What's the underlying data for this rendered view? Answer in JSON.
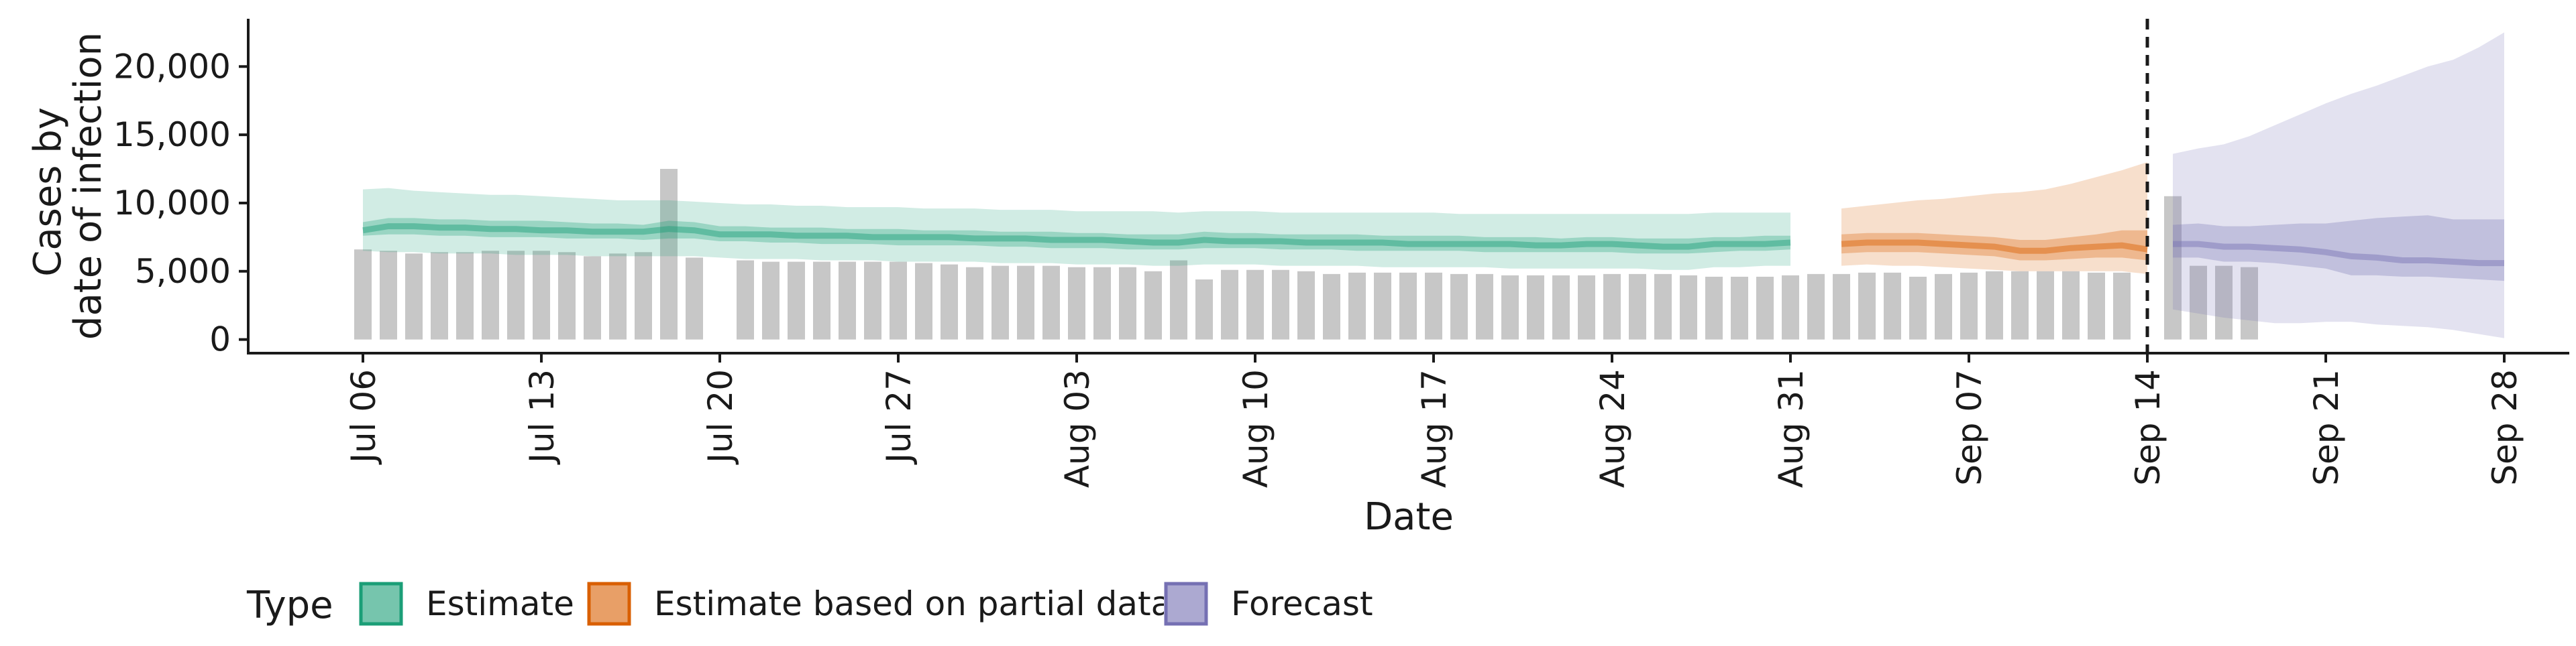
{
  "chart_data": {
    "type": "area",
    "xlabel": "Date",
    "ylabel_lines": [
      "Cases by",
      "date of infection"
    ],
    "ylim": [
      -1000,
      23500
    ],
    "y_ticks": [
      0,
      5000,
      10000,
      15000,
      20000
    ],
    "y_tick_labels": [
      "0",
      "5,000",
      "10,000",
      "15,000",
      "20,000"
    ],
    "x_range": [
      "2020-07-06",
      "2020-09-28"
    ],
    "x_ticks": [
      "2020-07-06",
      "2020-07-13",
      "2020-07-20",
      "2020-07-27",
      "2020-08-03",
      "2020-08-10",
      "2020-08-17",
      "2020-08-24",
      "2020-08-31",
      "2020-09-07",
      "2020-09-14",
      "2020-09-21",
      "2020-09-28"
    ],
    "x_tick_labels": [
      "Jul 06",
      "Jul 13",
      "Jul 20",
      "Jul 27",
      "Aug 03",
      "Aug 10",
      "Aug 17",
      "Aug 24",
      "Aug 31",
      "Sep 07",
      "Sep 14",
      "Sep 21",
      "Sep 28"
    ],
    "forecast_start": "2020-09-14",
    "grid": false,
    "legend_position": "bottom",
    "legend_title": "Type",
    "legend": [
      {
        "label": "Estimate",
        "color": "#1b9e77"
      },
      {
        "label": "Estimate based on partial data",
        "color": "#d95f02"
      },
      {
        "label": "Forecast",
        "color": "#7570b3"
      }
    ],
    "reported_cases": {
      "start": "2020-07-06",
      "values": [
        6600,
        6500,
        6300,
        6400,
        6400,
        6500,
        6500,
        6500,
        6400,
        6100,
        6300,
        6400,
        12500,
        6000,
        null,
        5800,
        5700,
        5700,
        5700,
        5700,
        5700,
        5700,
        5600,
        5500,
        5300,
        5400,
        5400,
        5400,
        5300,
        5300,
        5300,
        5000,
        5800,
        4400,
        5100,
        5100,
        5100,
        5000,
        4800,
        4900,
        4900,
        4900,
        4900,
        4800,
        4800,
        4700,
        4700,
        4700,
        4700,
        4800,
        4800,
        4800,
        4700,
        4600,
        4600,
        4600,
        4700,
        4800,
        4800,
        4900,
        4900,
        4600,
        4800,
        4900,
        5000,
        5000,
        5000,
        5000,
        4900,
        4900,
        null,
        10500,
        5400,
        5400,
        5300
      ]
    },
    "series": [
      {
        "name": "Estimate",
        "color": "#1b9e77",
        "start": "2020-07-06",
        "median": [
          8000,
          8300,
          8300,
          8200,
          8200,
          8100,
          8100,
          8000,
          8000,
          7900,
          7900,
          7900,
          8100,
          8000,
          7700,
          7700,
          7700,
          7600,
          7600,
          7600,
          7500,
          7500,
          7500,
          7500,
          7400,
          7400,
          7400,
          7300,
          7300,
          7300,
          7200,
          7100,
          7100,
          7300,
          7200,
          7200,
          7200,
          7100,
          7100,
          7100,
          7100,
          7000,
          7000,
          7000,
          7000,
          7000,
          6900,
          6900,
          7000,
          7000,
          6900,
          6800,
          6800,
          7000,
          7000,
          7000,
          7100
        ],
        "lower50": [
          7600,
          7700,
          7700,
          7600,
          7600,
          7500,
          7500,
          7500,
          7400,
          7400,
          7400,
          7300,
          7400,
          7400,
          7200,
          7200,
          7100,
          7100,
          7000,
          7000,
          7000,
          6900,
          6900,
          6900,
          6900,
          6800,
          6800,
          6700,
          6700,
          6700,
          6600,
          6600,
          6600,
          6700,
          6700,
          6700,
          6600,
          6600,
          6600,
          6500,
          6500,
          6500,
          6500,
          6500,
          6400,
          6400,
          6400,
          6400,
          6400,
          6400,
          6300,
          6300,
          6300,
          6400,
          6500,
          6500,
          6600
        ],
        "upper50": [
          8600,
          8900,
          8900,
          8800,
          8800,
          8700,
          8700,
          8700,
          8600,
          8500,
          8500,
          8400,
          8700,
          8600,
          8300,
          8300,
          8200,
          8200,
          8200,
          8100,
          8100,
          8100,
          8000,
          8000,
          8000,
          7900,
          7900,
          7900,
          7800,
          7800,
          7700,
          7700,
          7700,
          7900,
          7800,
          7800,
          7700,
          7700,
          7700,
          7700,
          7600,
          7600,
          7600,
          7600,
          7500,
          7500,
          7500,
          7400,
          7500,
          7500,
          7400,
          7400,
          7400,
          7500,
          7500,
          7600,
          7600
        ],
        "lower90": [
          6500,
          6400,
          6400,
          6300,
          6300,
          6300,
          6200,
          6200,
          6200,
          6100,
          6100,
          6100,
          6100,
          6100,
          6000,
          5900,
          5900,
          5900,
          5800,
          5800,
          5800,
          5700,
          5700,
          5700,
          5700,
          5600,
          5600,
          5600,
          5500,
          5500,
          5500,
          5400,
          5400,
          5500,
          5500,
          5500,
          5400,
          5400,
          5400,
          5400,
          5300,
          5300,
          5300,
          5300,
          5300,
          5200,
          5200,
          5200,
          5200,
          5200,
          5200,
          5100,
          5100,
          5300,
          5300,
          5400,
          5400
        ],
        "upper90": [
          11000,
          11100,
          10900,
          10800,
          10700,
          10600,
          10600,
          10500,
          10400,
          10300,
          10200,
          10200,
          10200,
          10100,
          10000,
          9900,
          9900,
          9800,
          9800,
          9700,
          9700,
          9700,
          9600,
          9600,
          9600,
          9500,
          9500,
          9500,
          9400,
          9400,
          9400,
          9400,
          9300,
          9400,
          9400,
          9400,
          9300,
          9300,
          9300,
          9300,
          9300,
          9300,
          9300,
          9200,
          9200,
          9200,
          9200,
          9200,
          9200,
          9200,
          9200,
          9200,
          9200,
          9300,
          9300,
          9300,
          9300
        ]
      },
      {
        "name": "Estimate based on partial data",
        "color": "#d95f02",
        "start": "2020-09-02",
        "median": [
          7000,
          7100,
          7100,
          7100,
          7000,
          6900,
          6800,
          6500,
          6500,
          6700,
          6800,
          6900,
          6600
        ],
        "lower50": [
          6300,
          6400,
          6400,
          6400,
          6300,
          6200,
          6100,
          5800,
          5800,
          5900,
          6000,
          6000,
          5800
        ],
        "upper50": [
          7700,
          7800,
          7800,
          7800,
          7700,
          7600,
          7500,
          7300,
          7300,
          7500,
          7700,
          8000,
          8000
        ],
        "lower90": [
          5400,
          5500,
          5400,
          5400,
          5300,
          5200,
          5100,
          5000,
          5000,
          5000,
          5000,
          5000,
          4800
        ],
        "upper90": [
          9600,
          9800,
          10000,
          10200,
          10300,
          10500,
          10700,
          10800,
          11000,
          11400,
          11900,
          12400,
          13000
        ]
      },
      {
        "name": "Forecast",
        "color": "#7570b3",
        "start": "2020-09-15",
        "median": [
          7000,
          7000,
          6800,
          6800,
          6700,
          6600,
          6400,
          6100,
          6000,
          5800,
          5800,
          5700,
          5600,
          5600
        ],
        "lower50": [
          6000,
          6000,
          5700,
          5700,
          5600,
          5400,
          5200,
          4700,
          4700,
          4600,
          4600,
          4500,
          4400,
          4300
        ],
        "upper50": [
          8400,
          8500,
          8300,
          8300,
          8400,
          8500,
          8500,
          8700,
          8900,
          9000,
          9100,
          8800,
          8800,
          8800
        ],
        "lower90": [
          2200,
          1900,
          1600,
          1400,
          1200,
          1200,
          1300,
          1300,
          1100,
          1000,
          900,
          700,
          400,
          100
        ],
        "upper90": [
          13600,
          14000,
          14300,
          14900,
          15700,
          16500,
          17300,
          18000,
          18600,
          19300,
          20000,
          20500,
          21400,
          22500
        ]
      }
    ]
  }
}
